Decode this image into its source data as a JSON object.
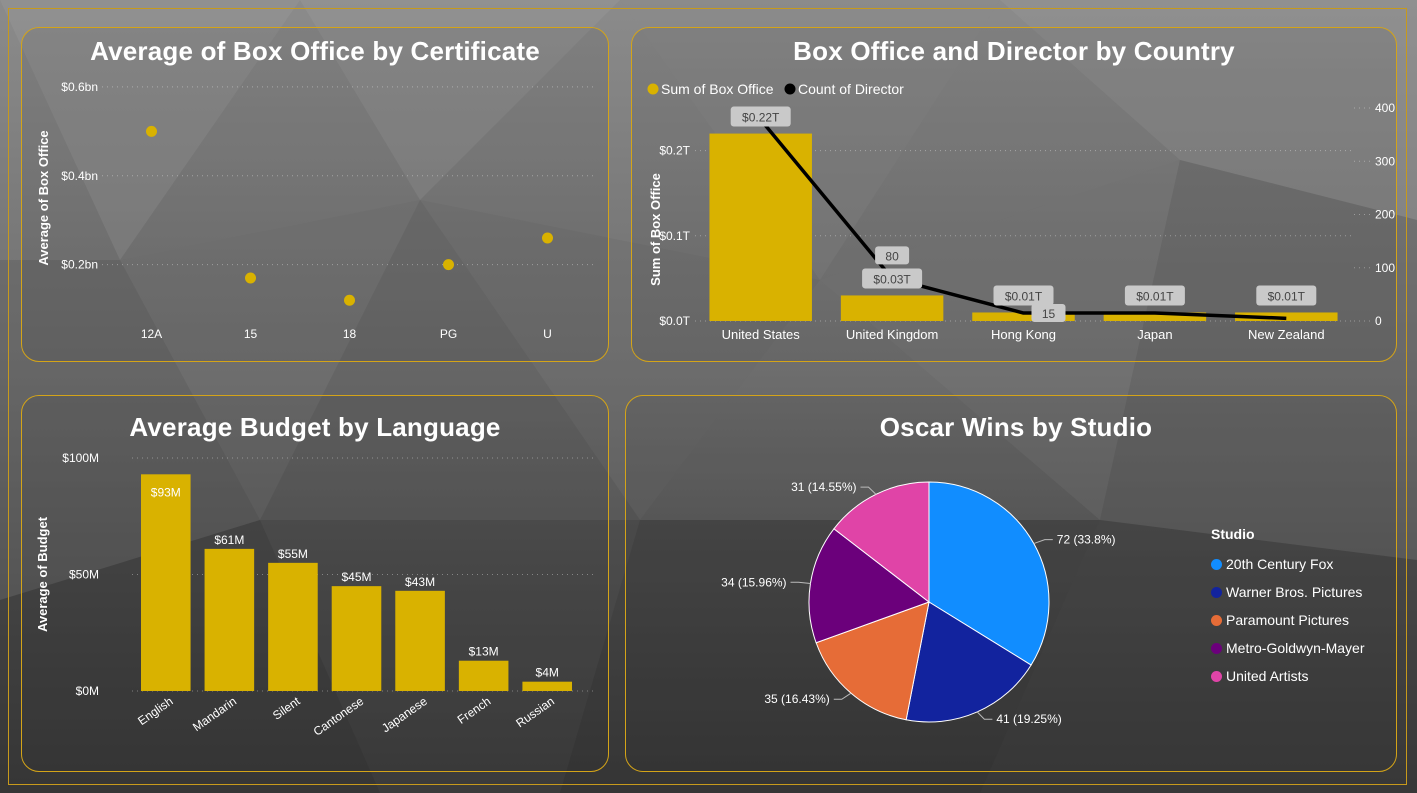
{
  "chart_data": [
    {
      "type": "scatter",
      "title": "Average of Box Office by Certificate",
      "ylabel": "Average of Box Office",
      "xlabel": "",
      "categories": [
        "12A",
        "15",
        "18",
        "PG",
        "U"
      ],
      "values": [
        0.5,
        0.17,
        0.12,
        0.2,
        0.26
      ],
      "yticks": [
        "$0.2bn",
        "$0.4bn",
        "$0.6bn"
      ],
      "ytick_values": [
        0.2,
        0.4,
        0.6
      ],
      "ylim": [
        0.08,
        0.62
      ],
      "color": "#d9b200"
    },
    {
      "type": "bar",
      "title": "Box Office and Director by Country",
      "ylabel": "Sum of Box Office",
      "xlabel": "",
      "categories": [
        "United States",
        "United Kingdom",
        "Hong Kong",
        "Japan",
        "New Zealand"
      ],
      "series": [
        {
          "name": "Sum of Box Office",
          "type": "bar",
          "values": [
            0.22,
            0.03,
            0.01,
            0.01,
            0.01
          ],
          "labels": [
            "$0.22T",
            "$0.03T",
            "$0.01T",
            "$0.01T",
            "$0.01T"
          ],
          "color": "#d9b200"
        },
        {
          "name": "Count of Director",
          "type": "line",
          "values": [
            378,
            80,
            15,
            15,
            5
          ],
          "labels": [
            "",
            "80",
            "15",
            "",
            ""
          ],
          "color": "#000000"
        }
      ],
      "yticks_left": [
        "$0.0T",
        "$0.1T",
        "$0.2T"
      ],
      "ytick_values_left": [
        0,
        0.1,
        0.2
      ],
      "ylim_left": [
        0,
        0.25
      ],
      "yticks_right": [
        "0",
        "100",
        "200",
        "300",
        "400"
      ],
      "ytick_values_right": [
        0,
        100,
        200,
        300,
        400
      ],
      "ylim_right": [
        0,
        400
      ],
      "legend": "top-left"
    },
    {
      "type": "bar",
      "title": "Average Budget by Language",
      "ylabel": "Average of Budget",
      "xlabel": "",
      "categories": [
        "English",
        "Mandarin",
        "Silent",
        "Cantonese",
        "Japanese",
        "French",
        "Russian"
      ],
      "values": [
        93,
        61,
        55,
        45,
        43,
        13,
        4
      ],
      "labels": [
        "$93M",
        "$61M",
        "$55M",
        "$45M",
        "$43M",
        "$13M",
        "$4M"
      ],
      "yticks": [
        "$0M",
        "$50M",
        "$100M"
      ],
      "ytick_values": [
        0,
        50,
        100
      ],
      "ylim": [
        0,
        100
      ],
      "color": "#d9b200"
    },
    {
      "type": "pie",
      "title": "Oscar Wins by Studio",
      "legend_title": "Studio",
      "legend": "right",
      "categories": [
        "20th Century Fox",
        "Warner Bros. Pictures",
        "Paramount Pictures",
        "Metro-Goldwyn-Mayer",
        "United Artists"
      ],
      "values": [
        72,
        41,
        35,
        34,
        31
      ],
      "labels": [
        "72 (33.8%)",
        "41 (19.25%)",
        "35 (16.43%)",
        "34 (15.96%)",
        "31 (14.55%)"
      ],
      "colors": [
        "#118dff",
        "#12239e",
        "#e66c37",
        "#6b007b",
        "#e044a7"
      ]
    }
  ]
}
